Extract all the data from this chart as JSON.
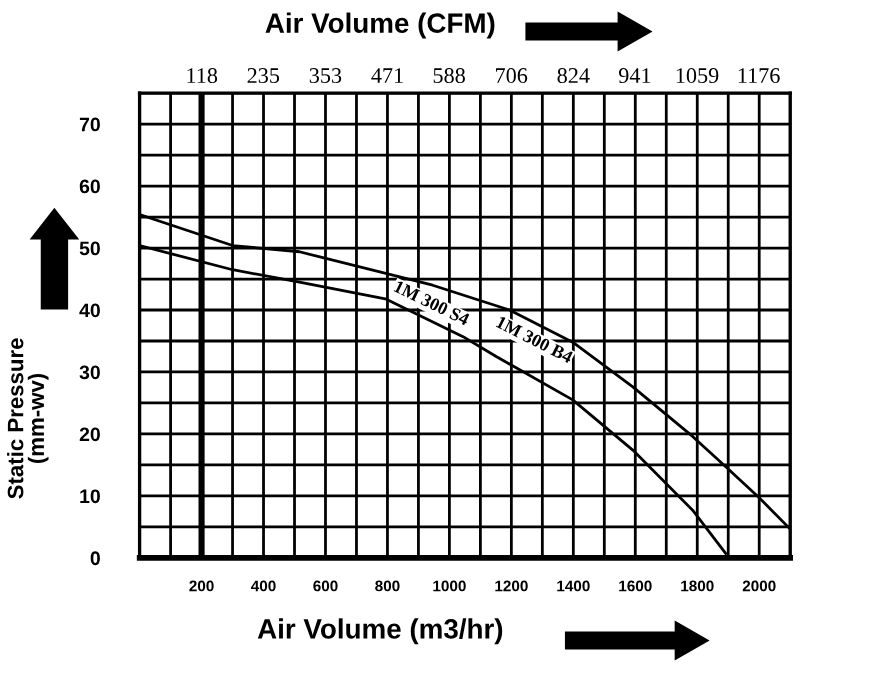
{
  "chart_data": {
    "type": "line",
    "xlabel": "Air Volume (m3/hr)",
    "x2label": "Air Volume (CFM)",
    "ylabel": "Static Pressure\n(mm-wv)",
    "xlim": [
      0,
      2100
    ],
    "xticks": [
      {
        "value": 100,
        "label": null
      },
      200,
      {
        "value": 300,
        "label": null
      },
      400,
      {
        "value": 500,
        "label": null
      },
      600,
      {
        "value": 700,
        "label": null
      },
      800,
      {
        "value": 900,
        "label": null
      },
      1000,
      {
        "value": 1100,
        "label": null
      },
      1200,
      {
        "value": 1300,
        "label": null
      },
      1400,
      {
        "value": 1500,
        "label": null
      },
      1600,
      {
        "value": 1700,
        "label": null
      },
      1800,
      {
        "value": 1900,
        "label": null
      },
      2000
    ],
    "x2lim": [
      0,
      1236
    ],
    "x2ticks": [
      118,
      235,
      353,
      471,
      588,
      706,
      824,
      941,
      1059,
      1176
    ],
    "ylim": [
      0,
      75
    ],
    "yticks": [
      0,
      {
        "value": 5,
        "label": null
      },
      10,
      {
        "value": 15,
        "label": null
      },
      20,
      {
        "value": 25,
        "label": null
      },
      30,
      {
        "value": 35,
        "label": null
      },
      40,
      {
        "value": 45,
        "label": null
      },
      50,
      {
        "value": 55,
        "label": null
      },
      60,
      {
        "value": 65,
        "label": null
      },
      70
    ],
    "grid": true,
    "line_style": "solid",
    "marker": "none",
    "ref_lines": [
      {
        "axis": "x",
        "value": 200,
        "color": "#000000"
      }
    ],
    "series": [
      {
        "name": "1M 300 B4",
        "color": "#000000",
        "x": [
          0,
          300,
          516,
          946,
          1194,
          1398,
          1592,
          1785,
          1892,
          2000,
          2097
        ],
        "values": [
          55.4,
          50.4,
          49.4,
          44,
          40,
          34.8,
          27.6,
          19.6,
          14.7,
          9.7,
          4.8
        ]
      },
      {
        "name": "1M 300 S4",
        "color": "#000000",
        "x": [
          0,
          300,
          516,
          793,
          1044,
          1151,
          1398,
          1592,
          1785,
          1892
        ],
        "values": [
          50.4,
          46.5,
          44.5,
          41.8,
          35.7,
          32.5,
          25.5,
          17.4,
          7.7,
          0.7
        ]
      }
    ]
  }
}
